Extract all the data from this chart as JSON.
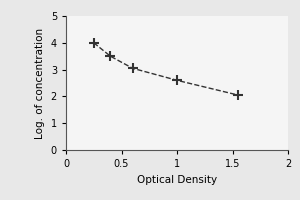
{
  "x_data": [
    0.25,
    0.4,
    0.6,
    1.0,
    1.55
  ],
  "y_data": [
    4.0,
    3.5,
    3.05,
    2.6,
    2.05
  ],
  "xlabel": "Optical Density",
  "ylabel": "Log. of concentration",
  "xlim": [
    0,
    2
  ],
  "ylim": [
    0,
    5
  ],
  "xticks": [
    0,
    0.5,
    1,
    1.5,
    2
  ],
  "yticks": [
    0,
    1,
    2,
    3,
    4,
    5
  ],
  "line_color": "#333333",
  "marker": "+",
  "linestyle": "--",
  "linewidth": 1.0,
  "markersize": 7,
  "markeredgewidth": 1.5,
  "xlabel_fontsize": 7.5,
  "ylabel_fontsize": 7.5,
  "tick_fontsize": 7,
  "background_color": "#e8e8e8",
  "plot_bg_color": "#f5f5f5"
}
